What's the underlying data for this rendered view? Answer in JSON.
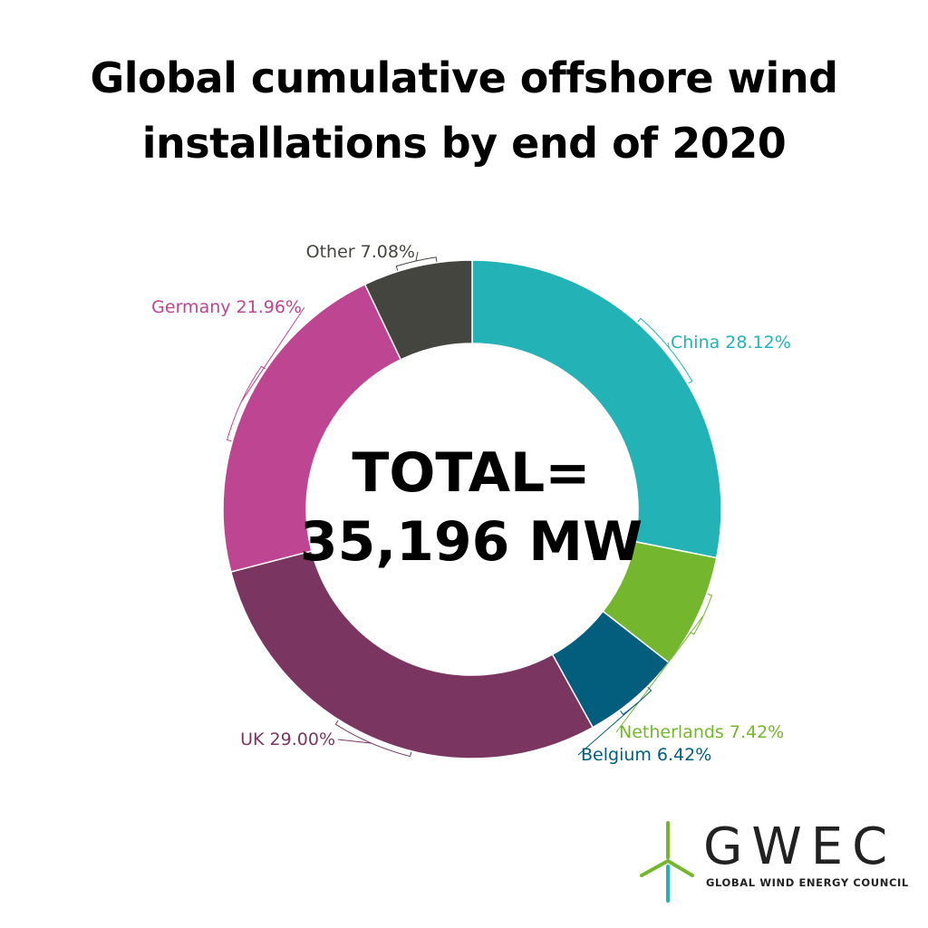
{
  "title": {
    "line1": "Global cumulative offshore wind",
    "line2": "installations by end of 2020"
  },
  "center": {
    "line1": "TOTAL=",
    "line2": "35,196 MW"
  },
  "chart_data": {
    "type": "pie",
    "title": "Global cumulative offshore wind installations by end of 2020",
    "unit": "%",
    "slices": [
      {
        "name": "China",
        "value": 28.12,
        "label": "China 28.12%",
        "color": "#23b3b6"
      },
      {
        "name": "Netherlands",
        "value": 7.42,
        "label": "Netherlands 7.42%",
        "color": "#74b72e"
      },
      {
        "name": "Belgium",
        "value": 6.42,
        "label": "Belgium 6.42%",
        "color": "#035d7c"
      },
      {
        "name": "UK",
        "value": 29.0,
        "label": "UK 29.00%",
        "color": "#7a3661"
      },
      {
        "name": "Germany",
        "value": 21.96,
        "label": "Germany 21.96%",
        "color": "#bd4591"
      },
      {
        "name": "Other",
        "value": 7.08,
        "label": "Other 7.08%",
        "color": "#45453f"
      }
    ]
  },
  "logo": {
    "wordmark": "GWEC",
    "tagline": "GLOBAL WIND ENERGY COUNCIL",
    "colors": {
      "green": "#74b72e",
      "teal": "#23b3b6",
      "text": "#222222"
    }
  }
}
